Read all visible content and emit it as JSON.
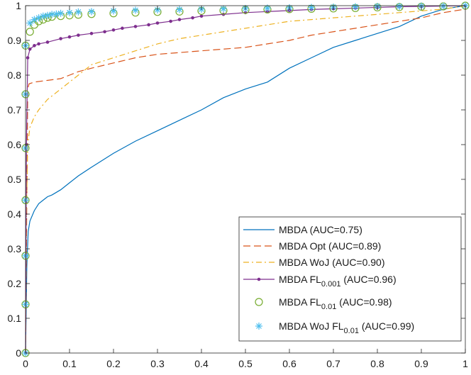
{
  "chart_data": {
    "type": "line",
    "title": "",
    "xlabel": "",
    "ylabel": "",
    "xlim": [
      0,
      1
    ],
    "ylim": [
      0,
      1
    ],
    "grid": false,
    "legend_position": "bottom-right",
    "x_ticks": [
      0,
      0.1,
      0.2,
      0.3,
      0.4,
      0.5,
      0.6,
      0.7,
      0.8,
      0.9,
      1
    ],
    "x_tick_labels": [
      "0",
      "0.1",
      "0.2",
      "0.3",
      "0.4",
      "0.5",
      "0.6",
      "0.7",
      "0.8",
      "0.9",
      "1"
    ],
    "y_ticks": [
      0,
      0.1,
      0.2,
      0.3,
      0.4,
      0.5,
      0.6,
      0.7,
      0.8,
      0.9,
      1
    ],
    "y_tick_labels": [
      "0",
      "0.1",
      "0.2",
      "0.3",
      "0.4",
      "0.5",
      "0.6",
      "0.7",
      "0.8",
      "0.9",
      "1"
    ],
    "series": [
      {
        "name": "MBDA (AUC=0.75)",
        "legend": {
          "base": "MBDA ",
          "sub": "",
          "tail": "(AUC=0.75)"
        },
        "color": "#0072BD",
        "style": "solid",
        "marker": "none",
        "x": [
          0,
          0.003,
          0.006,
          0.01,
          0.02,
          0.03,
          0.04,
          0.05,
          0.06,
          0.08,
          0.1,
          0.12,
          0.15,
          0.2,
          0.25,
          0.3,
          0.35,
          0.4,
          0.45,
          0.5,
          0.55,
          0.6,
          0.65,
          0.7,
          0.75,
          0.8,
          0.85,
          0.9,
          0.95,
          1
        ],
        "y": [
          0,
          0.25,
          0.35,
          0.38,
          0.41,
          0.43,
          0.44,
          0.45,
          0.455,
          0.47,
          0.49,
          0.51,
          0.535,
          0.575,
          0.61,
          0.64,
          0.67,
          0.7,
          0.735,
          0.76,
          0.78,
          0.82,
          0.85,
          0.88,
          0.9,
          0.92,
          0.94,
          0.97,
          0.99,
          1
        ]
      },
      {
        "name": "MBDA Opt (AUC=0.89)",
        "legend": {
          "base": "MBDA Opt ",
          "sub": "",
          "tail": "(AUC=0.89)"
        },
        "color": "#D95319",
        "style": "dashed",
        "marker": "none",
        "x": [
          0,
          0.002,
          0.005,
          0.008,
          0.02,
          0.05,
          0.08,
          0.1,
          0.12,
          0.15,
          0.2,
          0.25,
          0.3,
          0.35,
          0.4,
          0.45,
          0.5,
          0.55,
          0.6,
          0.65,
          0.7,
          0.75,
          0.8,
          0.85,
          0.9,
          0.95,
          1
        ],
        "y": [
          0,
          0.3,
          0.76,
          0.775,
          0.78,
          0.785,
          0.79,
          0.8,
          0.81,
          0.82,
          0.835,
          0.85,
          0.86,
          0.865,
          0.87,
          0.875,
          0.88,
          0.89,
          0.9,
          0.915,
          0.925,
          0.935,
          0.945,
          0.955,
          0.965,
          0.98,
          0.99
        ]
      },
      {
        "name": "MBDA WoJ (AUC=0.90)",
        "legend": {
          "base": "MBDA WoJ ",
          "sub": "",
          "tail": "(AUC=0.90)"
        },
        "color": "#EDB120",
        "style": "dashdot",
        "marker": "none",
        "x": [
          0,
          0.002,
          0.005,
          0.01,
          0.02,
          0.03,
          0.05,
          0.08,
          0.1,
          0.12,
          0.15,
          0.2,
          0.25,
          0.3,
          0.35,
          0.4,
          0.45,
          0.5,
          0.55,
          0.6,
          0.65,
          0.7,
          0.75,
          0.8,
          0.85,
          0.9,
          0.95,
          1
        ],
        "y": [
          0,
          0.4,
          0.6,
          0.65,
          0.68,
          0.7,
          0.73,
          0.76,
          0.78,
          0.8,
          0.83,
          0.85,
          0.87,
          0.89,
          0.905,
          0.915,
          0.925,
          0.935,
          0.945,
          0.955,
          0.96,
          0.965,
          0.97,
          0.975,
          0.98,
          0.985,
          0.99,
          1
        ]
      },
      {
        "name": "MBDA FL 0.001 (AUC=0.96)",
        "legend": {
          "base": "MBDA FL",
          "sub": "0.001",
          "tail": " (AUC=0.96)"
        },
        "color": "#7E2F8E",
        "style": "solid",
        "marker": "dot",
        "x": [
          0,
          0.002,
          0.005,
          0.01,
          0.02,
          0.03,
          0.05,
          0.08,
          0.1,
          0.12,
          0.15,
          0.18,
          0.2,
          0.22,
          0.25,
          0.28,
          0.3,
          0.33,
          0.35,
          0.38,
          0.4,
          0.45,
          0.5,
          0.55,
          0.6,
          0.65,
          0.7,
          0.75,
          0.8,
          0.85,
          0.9,
          0.95,
          1
        ],
        "y": [
          0,
          0.6,
          0.85,
          0.875,
          0.885,
          0.89,
          0.895,
          0.905,
          0.91,
          0.915,
          0.92,
          0.925,
          0.93,
          0.935,
          0.94,
          0.945,
          0.95,
          0.955,
          0.96,
          0.965,
          0.97,
          0.975,
          0.98,
          0.983,
          0.986,
          0.989,
          0.991,
          0.993,
          0.995,
          0.997,
          0.998,
          0.999,
          1
        ]
      },
      {
        "name": "MBDA FL 0.01 (AUC=0.98)",
        "legend": {
          "base": "MBDA FL",
          "sub": "0.01",
          "tail": " (AUC=0.98)"
        },
        "color": "#77AC30",
        "style": "none",
        "marker": "circle",
        "x": [
          0,
          0,
          0,
          0,
          0,
          0,
          0,
          0.01,
          0.02,
          0.03,
          0.04,
          0.05,
          0.06,
          0.08,
          0.1,
          0.12,
          0.15,
          0.2,
          0.25,
          0.3,
          0.35,
          0.4,
          0.45,
          0.5,
          0.55,
          0.6,
          0.65,
          0.7,
          0.75,
          0.8,
          0.85,
          0.9,
          0.95,
          1
        ],
        "y": [
          0,
          0.14,
          0.28,
          0.44,
          0.59,
          0.745,
          0.885,
          0.925,
          0.945,
          0.955,
          0.96,
          0.965,
          0.968,
          0.97,
          0.972,
          0.974,
          0.976,
          0.978,
          0.98,
          0.982,
          0.983,
          0.985,
          0.986,
          0.988,
          0.989,
          0.99,
          0.991,
          0.992,
          0.993,
          0.995,
          0.996,
          0.997,
          0.998,
          1
        ]
      },
      {
        "name": "MBDA WoJ FL 0.01 (AUC=0.99)",
        "legend": {
          "base": "MBDA WoJ FL",
          "sub": "0.01",
          "tail": " (AUC=0.99)"
        },
        "color": "#4DBEEE",
        "style": "none",
        "marker": "star",
        "x": [
          0,
          0,
          0,
          0,
          0,
          0,
          0,
          0.01,
          0.02,
          0.03,
          0.04,
          0.05,
          0.06,
          0.07,
          0.08,
          0.1,
          0.12,
          0.15,
          0.2,
          0.25,
          0.3,
          0.35,
          0.4,
          0.45,
          0.5,
          0.55,
          0.6,
          0.65,
          0.7,
          0.75,
          0.8,
          0.85,
          0.9,
          0.95,
          1
        ],
        "y": [
          0,
          0.14,
          0.28,
          0.44,
          0.59,
          0.745,
          0.885,
          0.95,
          0.96,
          0.965,
          0.97,
          0.972,
          0.975,
          0.976,
          0.978,
          0.98,
          0.982,
          0.983,
          0.985,
          0.987,
          0.988,
          0.989,
          0.99,
          0.991,
          0.992,
          0.993,
          0.994,
          0.995,
          0.996,
          0.997,
          0.998,
          0.998,
          0.999,
          0.999,
          1
        ]
      }
    ]
  }
}
